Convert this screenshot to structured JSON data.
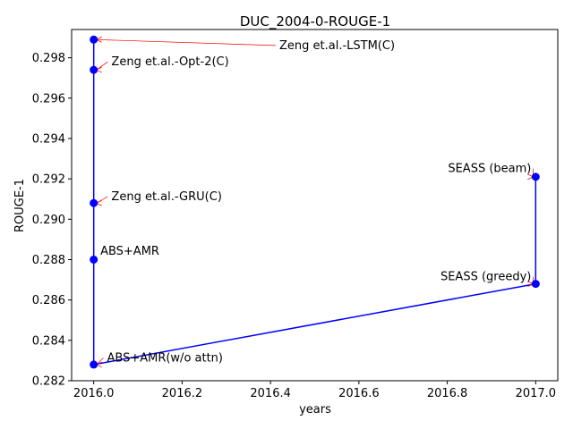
{
  "chart_data": {
    "type": "line",
    "title": "DUC_2004-0-ROUGE-1",
    "xlabel": "years",
    "ylabel": "ROUGE-1",
    "xlim": [
      2015.95,
      2017.05
    ],
    "ylim": [
      0.282,
      0.2994
    ],
    "xticks": [
      2016.0,
      2016.2,
      2016.4,
      2016.6,
      2016.8,
      2017.0
    ],
    "xtick_labels": [
      "2016.0",
      "2016.2",
      "2016.4",
      "2016.6",
      "2016.8",
      "2017.0"
    ],
    "yticks": [
      0.282,
      0.284,
      0.286,
      0.288,
      0.29,
      0.292,
      0.294,
      0.296,
      0.298
    ],
    "ytick_labels": [
      "0.282",
      "0.284",
      "0.286",
      "0.288",
      "0.290",
      "0.292",
      "0.294",
      "0.296",
      "0.298"
    ],
    "grid": false,
    "line_color": "#0000ff",
    "marker_color": "#0000ff",
    "arrow_color": "#ff0000",
    "points": [
      {
        "label": "Zeng et.al.-LSTM(C)",
        "x": 2016.0,
        "y": 0.2989
      },
      {
        "label": "Zeng et.al.-Opt-2(C)",
        "x": 2016.0,
        "y": 0.2974
      },
      {
        "label": "Zeng et.al.-GRU(C)",
        "x": 2016.0,
        "y": 0.2908
      },
      {
        "label": "ABS+AMR",
        "x": 2016.0,
        "y": 0.288
      },
      {
        "label": "ABS+AMR(w/o attn)",
        "x": 2016.0,
        "y": 0.2828
      },
      {
        "label": "SEASS (greedy)",
        "x": 2017.0,
        "y": 0.2868
      },
      {
        "label": "SEASS (beam)",
        "x": 2017.0,
        "y": 0.2921
      }
    ],
    "annotations": [
      {
        "label": "Zeng et.al.-LSTM(C)",
        "text_x": 2016.42,
        "text_y": 0.29843,
        "anchor": "start",
        "arrow": true
      },
      {
        "label": "Zeng et.al.-Opt-2(C)",
        "text_x": 2016.04,
        "text_y": 0.29762,
        "anchor": "start",
        "arrow": true
      },
      {
        "label": "Zeng et.al.-GRU(C)",
        "text_x": 2016.04,
        "text_y": 0.29095,
        "anchor": "start",
        "arrow": true
      },
      {
        "label": "ABS+AMR",
        "text_x": 2016.015,
        "text_y": 0.28824,
        "anchor": "start",
        "arrow": false
      },
      {
        "label": "ABS+AMR(w/o attn)",
        "text_x": 2016.03,
        "text_y": 0.28295,
        "anchor": "start",
        "arrow": true
      },
      {
        "label": "SEASS (greedy)",
        "text_x": 2016.99,
        "text_y": 0.28697,
        "anchor": "end",
        "arrow": true
      },
      {
        "label": "SEASS (beam)",
        "text_x": 2016.99,
        "text_y": 0.29233,
        "anchor": "end",
        "arrow": true
      }
    ]
  }
}
